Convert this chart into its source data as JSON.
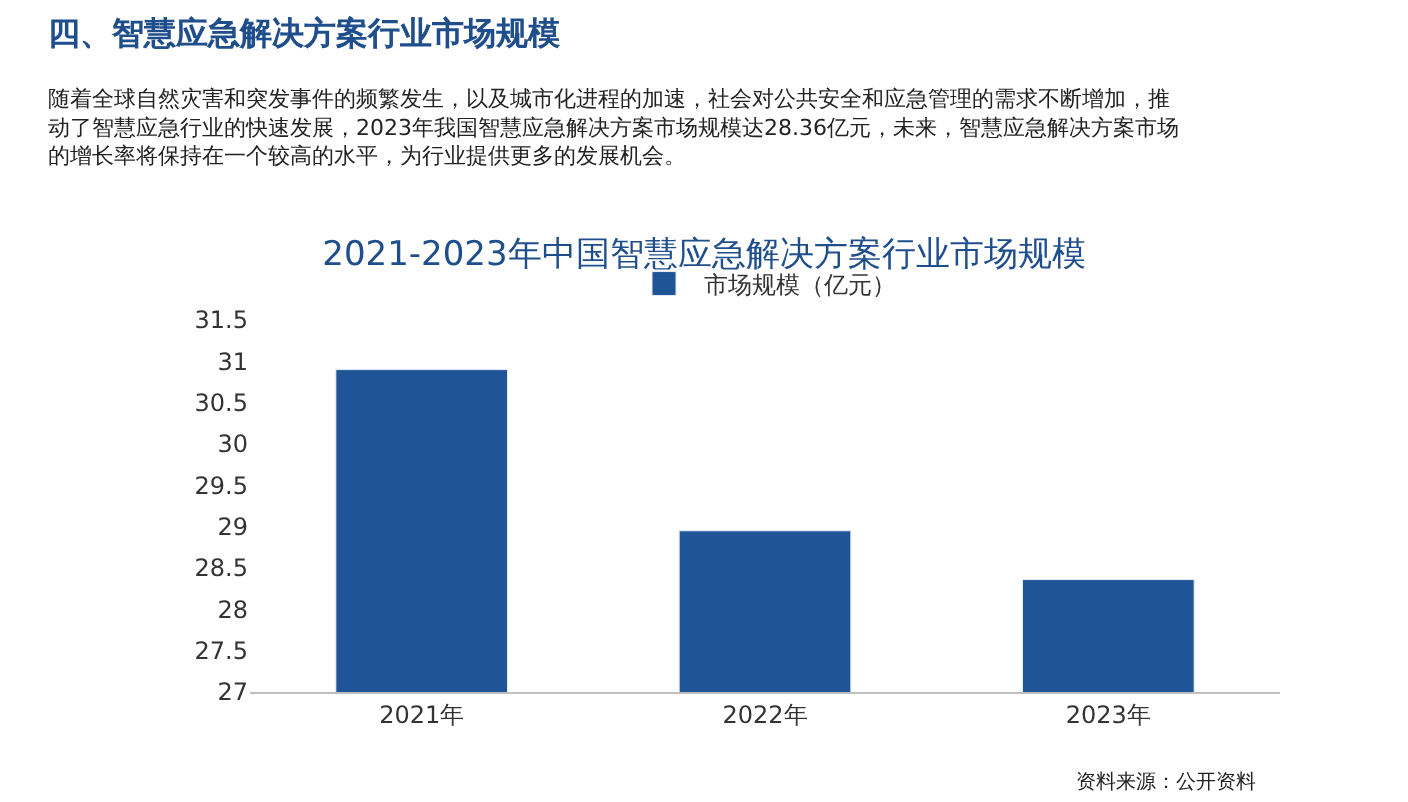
{
  "chart_data": {
    "type": "bar",
    "title": "2021-2023年中国智慧应急解决方案行业市场规模",
    "categories": [
      "2021年",
      "2022年",
      "2023年"
    ],
    "series": [
      {
        "name": "市场规模（亿元）",
        "color": "#1f5597",
        "values": [
          30.9,
          28.95,
          28.36
        ]
      }
    ],
    "ylim": [
      27,
      31.5
    ],
    "yticks": [
      27,
      27.5,
      28,
      28.5,
      29,
      29.5,
      30,
      30.5,
      31,
      31.5
    ],
    "legend": "top",
    "annotations": [
      "四、智慧应急解决方案行业市场规模",
      "随着全球自然灾害和突发事件的频繁发生，以及城市化进程的加速，社会对公共安全和应急管理的需求不断增加，推动了智慧应急行业的快速发展，2023年我国智慧应急解决方案市场规模达28.36亿元，未来，智慧应急解决方案市场的增长率将保持在一个较高的水平，为行业提供更多的发展机会。",
      "资料来源：公开资料"
    ]
  }
}
